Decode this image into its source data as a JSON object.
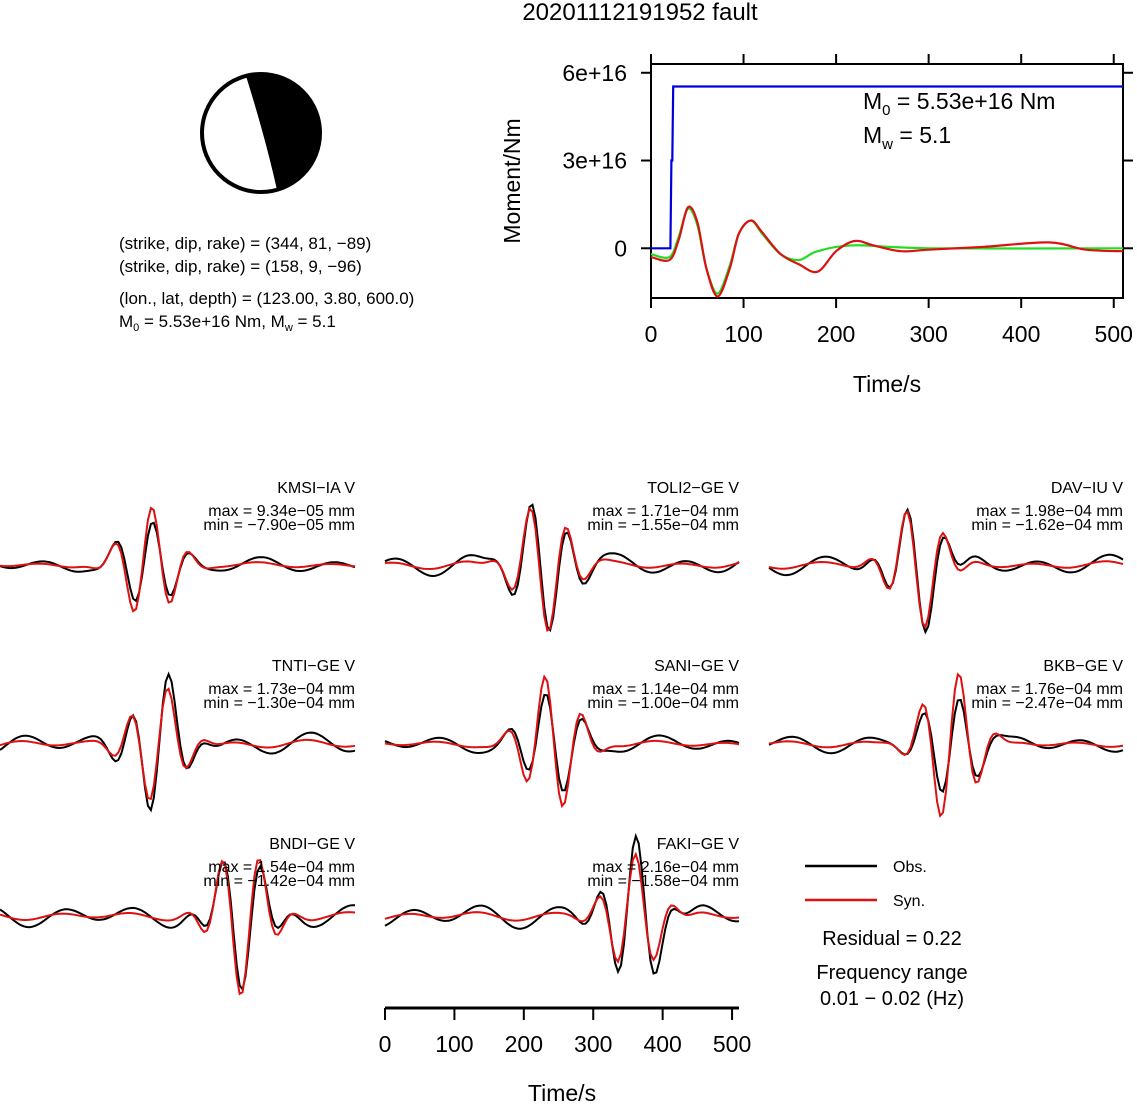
{
  "title": "20201112191952 fault",
  "mechanism": {
    "plane1": "(strike, dip, rake) = (344, 81, −89)",
    "plane2": "(strike, dip, rake) = (158, 9, −96)",
    "location": "(lon., lat, depth) = (123.00, 3.80, 600.0)",
    "magnitude_m0": "M",
    "magnitude_m0_sub": "0",
    "magnitude_rest1": " = 5.53e+16 Nm, M",
    "magnitude_w_sub": "w",
    "magnitude_rest2": " = 5.1"
  },
  "moment_panel": {
    "ylabel": "Moment/Nm",
    "xlabel": "Time/s",
    "yticks": [
      "0",
      "3e+16",
      "6e+16"
    ],
    "xticks": [
      "0",
      "100",
      "200",
      "300",
      "400",
      "500"
    ],
    "m0_main": "M",
    "m0_sub": "0",
    "m0_value": " = 5.53e+16 Nm",
    "mw_main": "M",
    "mw_sub": "w",
    "mw_value": " = 5.1",
    "colors": {
      "moment": "#0000dd",
      "rate_obs": "#22dd22",
      "rate_syn": "#dd1111"
    }
  },
  "stations": [
    {
      "name": "KMSI−IA V",
      "max": "max = 9.34e−05 mm",
      "min": "min = −7.90e−05 mm"
    },
    {
      "name": "TOLI2−GE V",
      "max": "max = 1.71e−04 mm",
      "min": "min = −1.55e−04 mm"
    },
    {
      "name": "DAV−IU V",
      "max": "max = 1.98e−04 mm",
      "min": "min = −1.62e−04 mm"
    },
    {
      "name": "TNTI−GE V",
      "max": "max = 1.73e−04 mm",
      "min": "min = −1.30e−04 mm"
    },
    {
      "name": "SANI−GE V",
      "max": "max = 1.14e−04 mm",
      "min": "min = −1.00e−04 mm"
    },
    {
      "name": "BKB−GE V",
      "max": "max = 1.76e−04 mm",
      "min": "min = −2.47e−04 mm"
    },
    {
      "name": "BNDI−GE V",
      "max": "max = 1.54e−04 mm",
      "min": "min = −1.42e−04 mm"
    },
    {
      "name": "FAKI−GE V",
      "max": "max = 2.16e−04 mm",
      "min": "min = −1.58e−04 mm"
    }
  ],
  "legend": {
    "obs": "Obs.",
    "syn": "Syn.",
    "obs_color": "#000000",
    "syn_color": "#dd1111"
  },
  "residual": "Residual = 0.22",
  "freq_label": "Frequency range",
  "freq_value": "0.01 − 0.02 (Hz)",
  "wave_axis": {
    "xlabel": "Time/s",
    "xticks": [
      "0",
      "100",
      "200",
      "300",
      "400",
      "500"
    ]
  },
  "chart_data": [
    {
      "type": "line",
      "title": "20201112191952 fault",
      "xlabel": "Time/s",
      "ylabel": "Moment/Nm",
      "xlim": [
        0,
        510
      ],
      "ylim": [
        -1.7e+16,
        6.3e+16
      ],
      "series": [
        {
          "name": "moment",
          "x": [
            0,
            21,
            22,
            23,
            24,
            510
          ],
          "values": [
            0,
            0,
            3e+16,
            3e+16,
            5.53e+16,
            5.53e+16
          ]
        },
        {
          "name": "moment rate (green)",
          "x": [
            0,
            20,
            30,
            40,
            50,
            60,
            72,
            85,
            95,
            108,
            120,
            140,
            160,
            180,
            220,
            300,
            510
          ],
          "values": [
            -2000000000000000.0,
            -3000000000000000.0,
            4000000000000000.0,
            1.35e+16,
            8000000000000000.0,
            -7000000000000000.0,
            -1.55e+16,
            -6000000000000000.0,
            5000000000000000.0,
            9500000000000000.0,
            5000000000000000.0,
            -2000000000000000.0,
            -4000000000000000.0,
            -1000000000000000.0,
            1000000000000000.0,
            0,
            0
          ]
        },
        {
          "name": "moment rate (red)",
          "x": [
            0,
            20,
            30,
            40,
            50,
            60,
            72,
            85,
            95,
            108,
            120,
            140,
            160,
            180,
            200,
            220,
            240,
            270,
            300,
            360,
            430,
            470,
            510
          ],
          "values": [
            -3000000000000000.0,
            -4000000000000000.0,
            3000000000000000.0,
            1.4e+16,
            9000000000000000.0,
            -7000000000000000.0,
            -1.65e+16,
            -7000000000000000.0,
            5000000000000000.0,
            9500000000000000.0,
            5500000000000000.0,
            -2000000000000000.0,
            -5500000000000000.0,
            -8000000000000000.0,
            -1000000000000000.0,
            2500000000000000.0,
            1000000000000000.0,
            -1000000000000000.0,
            -500000000000000.0,
            500000000000000.0,
            2000000000000000.0,
            -500000000000000.0,
            -1000000000000000.0
          ]
        }
      ]
    },
    {
      "type": "line",
      "xlabel": "Time/s",
      "xlim": [
        0,
        510
      ],
      "stations": [
        "KMSI−IA V",
        "TOLI2−GE V",
        "DAV−IU V",
        "TNTI−GE V",
        "SANI−GE V",
        "BKB−GE V",
        "BNDI−GE V",
        "FAKI−GE V"
      ],
      "series": [
        {
          "name": "Obs.",
          "x": [
            0,
            510
          ]
        },
        {
          "name": "Syn.",
          "x": [
            0,
            510
          ]
        }
      ]
    }
  ]
}
